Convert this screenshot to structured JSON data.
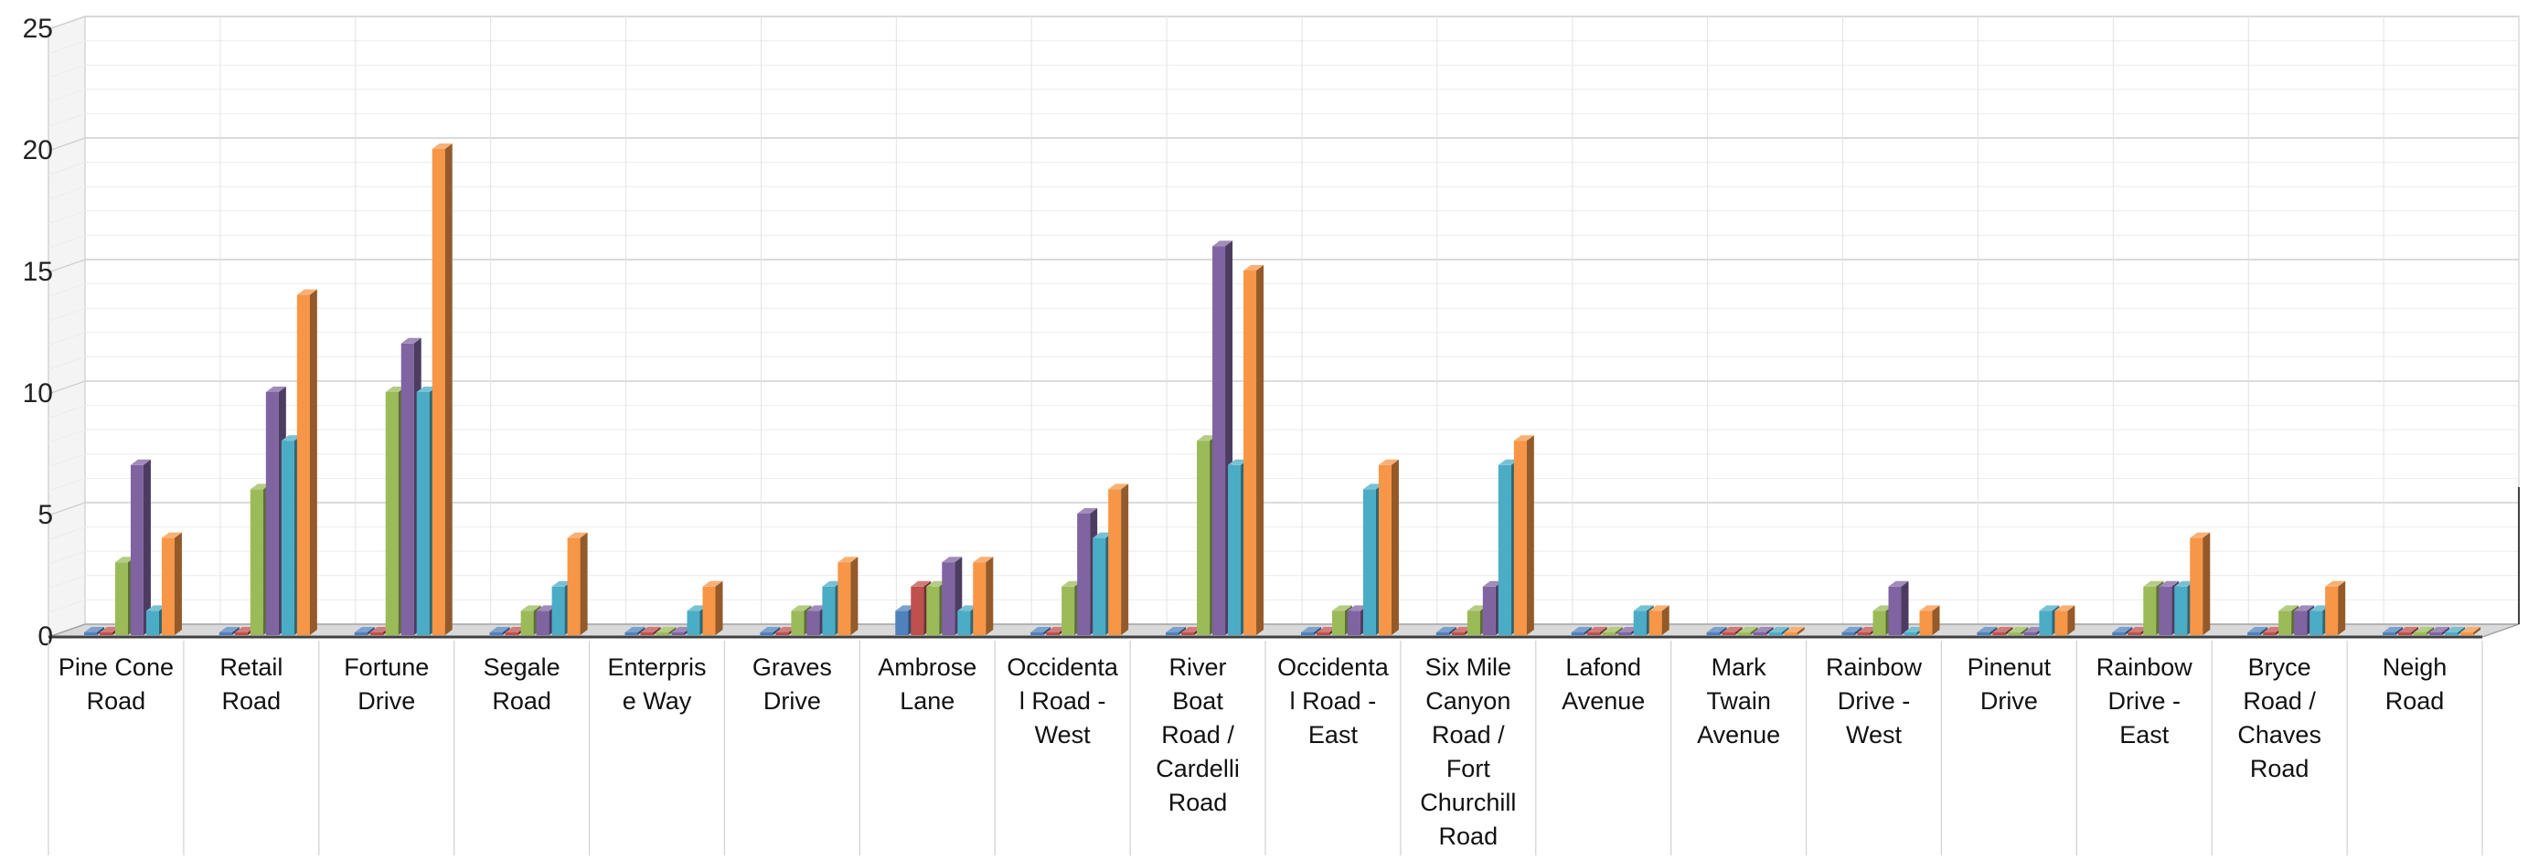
{
  "chart_data": {
    "type": "bar",
    "title": "",
    "xlabel": "",
    "ylabel": "",
    "ylim": [
      0,
      25
    ],
    "y_ticks": [
      "0",
      "5",
      "10",
      "15",
      "20",
      "25"
    ],
    "grid": true,
    "legend": "none",
    "style": "3d-clustered-column",
    "categories": [
      [
        "Pine Cone",
        "Road"
      ],
      [
        "Retail",
        "Road"
      ],
      [
        "Fortune",
        "Drive"
      ],
      [
        "Segale",
        "Road"
      ],
      [
        "Enterpris",
        "e Way"
      ],
      [
        "Graves",
        "Drive"
      ],
      [
        "Ambrose",
        "Lane"
      ],
      [
        "Occidenta",
        "l Road -",
        "West"
      ],
      [
        "River",
        "Boat",
        "Road /",
        "Cardelli",
        "Road"
      ],
      [
        "Occidenta",
        "l Road -",
        "East"
      ],
      [
        "Six Mile",
        "Canyon",
        "Road /",
        "Fort",
        "Churchill",
        "Road"
      ],
      [
        "Lafond",
        "Avenue"
      ],
      [
        "Mark",
        "Twain",
        "Avenue"
      ],
      [
        "Rainbow",
        "Drive -",
        "West"
      ],
      [
        "Pinenut",
        "Drive"
      ],
      [
        "Rainbow",
        "Drive -",
        "East"
      ],
      [
        "Bryce",
        "Road /",
        "Chaves",
        "Road"
      ],
      [
        "Neigh",
        "Road"
      ]
    ],
    "series": [
      {
        "color": "#4F81BD",
        "values": [
          0,
          0,
          0,
          0,
          0,
          0,
          1,
          0,
          0,
          0,
          0,
          0,
          0,
          0,
          0,
          0,
          0,
          0
        ]
      },
      {
        "color": "#C0504D",
        "values": [
          0,
          0,
          0,
          0,
          0,
          0,
          2,
          0,
          0,
          0,
          0,
          0,
          0,
          0,
          0,
          0,
          0,
          0
        ]
      },
      {
        "color": "#9BBB59",
        "values": [
          3,
          6,
          10,
          1,
          0,
          1,
          2,
          2,
          8,
          1,
          1,
          0,
          0,
          1,
          0,
          2,
          1,
          0
        ]
      },
      {
        "color": "#8064A2",
        "values": [
          7,
          10,
          12,
          1,
          0,
          1,
          3,
          5,
          16,
          1,
          2,
          0,
          0,
          2,
          0,
          2,
          1,
          0
        ]
      },
      {
        "color": "#4BACC6",
        "values": [
          1,
          8,
          10,
          2,
          1,
          2,
          1,
          4,
          7,
          6,
          7,
          1,
          0,
          0,
          1,
          2,
          1,
          0
        ]
      },
      {
        "color": "#F79646",
        "values": [
          4,
          14,
          20,
          4,
          2,
          3,
          3,
          6,
          15,
          7,
          8,
          1,
          0,
          1,
          1,
          4,
          2,
          0
        ]
      }
    ]
  }
}
